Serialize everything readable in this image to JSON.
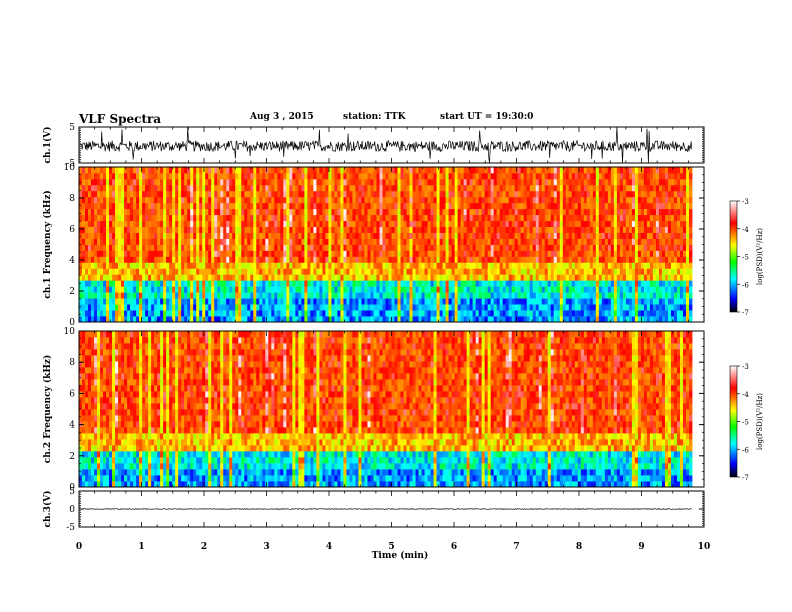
{
  "header": {
    "title": "VLF Spectra",
    "date": "Aug 3 , 2015",
    "station": "station: TTK",
    "start": "start UT = 19:30:0"
  },
  "chart_data": [
    {
      "type": "line",
      "panel": "ch1-waveform",
      "ylabel": "ch.1(V)",
      "ylim": [
        -5,
        5
      ],
      "yticks": [
        "5",
        "-5"
      ],
      "xlim": [
        0,
        10
      ],
      "description_values": {
        "baseline": -0.3,
        "typical_amplitude": 1.5
      }
    },
    {
      "type": "heatmap",
      "panel": "ch1-spectrogram",
      "ylabel": "ch.1 Frequency (kHz)",
      "ylim": [
        0,
        10
      ],
      "yticks": [
        "0",
        "2",
        "4",
        "6",
        "8",
        "10"
      ],
      "xlim": [
        0,
        10
      ],
      "colorbar": {
        "label": "log(PSD)(V²/Hz)",
        "ticks": [
          "-3",
          "-4",
          "-5",
          "-6",
          "-7"
        ],
        "range": [
          -7,
          -3
        ]
      },
      "band_top_khz": 2.6
    },
    {
      "type": "heatmap",
      "panel": "ch2-spectrogram",
      "ylabel": "ch.2 Frequency (kHz)",
      "ylim": [
        0,
        10
      ],
      "yticks": [
        "0",
        "2",
        "4",
        "6",
        "8",
        "10"
      ],
      "xlim": [
        0,
        10
      ],
      "colorbar": {
        "label": "log(PSD)(V²/Hz)",
        "ticks": [
          "-3",
          "-4",
          "-5",
          "-6",
          "-7"
        ],
        "range": [
          -7,
          -3
        ]
      },
      "band_top_khz": 2.2
    },
    {
      "type": "line",
      "panel": "ch3-waveform",
      "ylabel": "ch.3(V)",
      "ylim": [
        -5,
        5
      ],
      "yticks": [
        "5",
        "0",
        "-5"
      ],
      "xlim": [
        0,
        10
      ],
      "xlabel": "Time (min)",
      "xticks": [
        "0",
        "1",
        "2",
        "3",
        "4",
        "5",
        "6",
        "7",
        "8",
        "9",
        "10"
      ],
      "description_values": {
        "baseline": 0,
        "typical_amplitude": 0.1
      }
    }
  ]
}
